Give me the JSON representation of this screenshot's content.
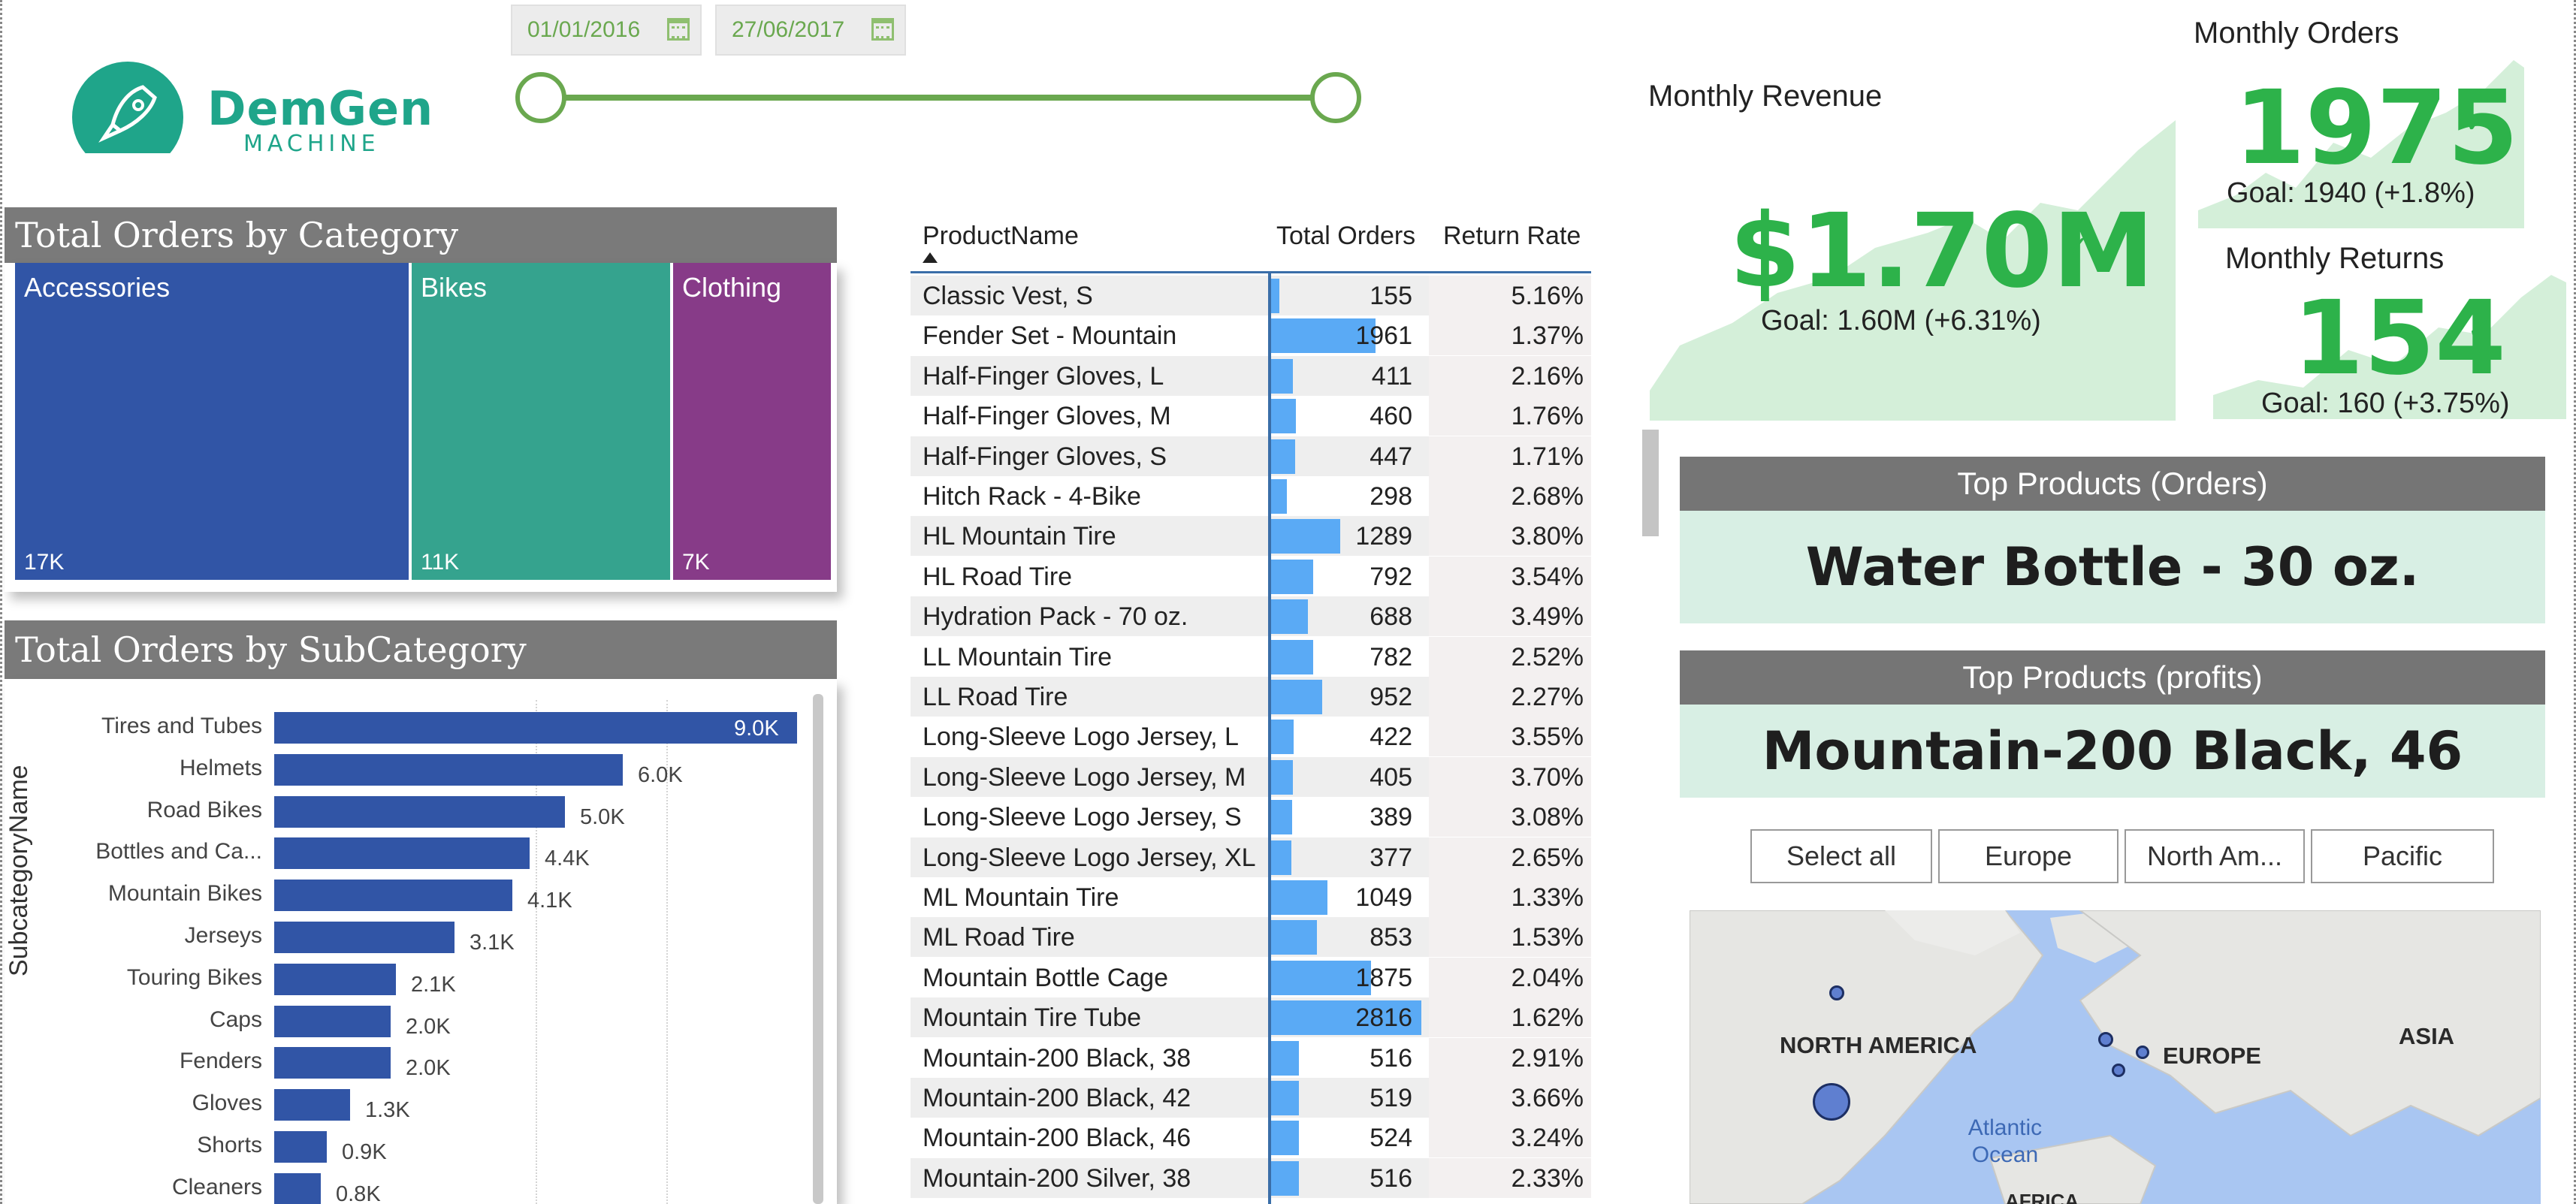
{
  "logo": {
    "name": "DemGen",
    "sub": "MACHINE"
  },
  "date_slicer": {
    "start": "01/01/2016",
    "end": "27/06/2017"
  },
  "treemap": {
    "title": "Total Orders by Category",
    "cells": [
      {
        "name": "Accessories",
        "value": "17K",
        "color": "#3155a6"
      },
      {
        "name": "Bikes",
        "value": "11K",
        "color": "#35a38e"
      },
      {
        "name": "Clothing",
        "value": "7K",
        "color": "#873b88"
      }
    ]
  },
  "subcategory": {
    "title": "Total Orders by SubCategory",
    "axis_title": "SubcategoryName"
  },
  "chart_data": {
    "type": "bar",
    "orientation": "horizontal",
    "title": "Total Orders by SubCategory",
    "xlabel": "",
    "ylabel": "SubcategoryName",
    "categories": [
      "Tires and Tubes",
      "Helmets",
      "Road Bikes",
      "Bottles and Ca...",
      "Mountain Bikes",
      "Jerseys",
      "Touring Bikes",
      "Caps",
      "Fenders",
      "Gloves",
      "Shorts",
      "Cleaners"
    ],
    "values": [
      9000,
      6000,
      5000,
      4400,
      4100,
      3100,
      2100,
      2000,
      2000,
      1300,
      900,
      800
    ],
    "labels": [
      "9.0K",
      "6.0K",
      "5.0K",
      "4.4K",
      "4.1K",
      "3.1K",
      "2.1K",
      "2.0K",
      "2.0K",
      "1.3K",
      "0.9K",
      "0.8K"
    ],
    "xlim": [
      0,
      9000
    ],
    "grid": true,
    "color": "#3155a6"
  },
  "table": {
    "headers": {
      "product": "ProductName",
      "orders": "Total Orders",
      "rate": "Return Rate"
    },
    "rows": [
      {
        "product": "Classic Vest, S",
        "orders": 155,
        "rate": "5.16%"
      },
      {
        "product": "Fender Set - Mountain",
        "orders": 1961,
        "rate": "1.37%"
      },
      {
        "product": "Half-Finger Gloves, L",
        "orders": 411,
        "rate": "2.16%"
      },
      {
        "product": "Half-Finger Gloves, M",
        "orders": 460,
        "rate": "1.76%"
      },
      {
        "product": "Half-Finger Gloves, S",
        "orders": 447,
        "rate": "1.71%"
      },
      {
        "product": "Hitch Rack - 4-Bike",
        "orders": 298,
        "rate": "2.68%"
      },
      {
        "product": "HL Mountain Tire",
        "orders": 1289,
        "rate": "3.80%"
      },
      {
        "product": "HL Road Tire",
        "orders": 792,
        "rate": "3.54%"
      },
      {
        "product": "Hydration Pack - 70 oz.",
        "orders": 688,
        "rate": "3.49%"
      },
      {
        "product": "LL Mountain Tire",
        "orders": 782,
        "rate": "2.52%"
      },
      {
        "product": "LL Road Tire",
        "orders": 952,
        "rate": "2.27%"
      },
      {
        "product": "Long-Sleeve Logo Jersey, L",
        "orders": 422,
        "rate": "3.55%"
      },
      {
        "product": "Long-Sleeve Logo Jersey, M",
        "orders": 405,
        "rate": "3.70%"
      },
      {
        "product": "Long-Sleeve Logo Jersey, S",
        "orders": 389,
        "rate": "3.08%"
      },
      {
        "product": "Long-Sleeve Logo Jersey, XL",
        "orders": 377,
        "rate": "2.65%"
      },
      {
        "product": "ML Mountain Tire",
        "orders": 1049,
        "rate": "1.33%"
      },
      {
        "product": "ML Road Tire",
        "orders": 853,
        "rate": "1.53%"
      },
      {
        "product": "Mountain Bottle Cage",
        "orders": 1875,
        "rate": "2.04%"
      },
      {
        "product": "Mountain Tire Tube",
        "orders": 2816,
        "rate": "1.62%"
      },
      {
        "product": "Mountain-200 Black, 38",
        "orders": 516,
        "rate": "2.91%"
      },
      {
        "product": "Mountain-200 Black, 42",
        "orders": 519,
        "rate": "3.66%"
      },
      {
        "product": "Mountain-200 Black, 46",
        "orders": 524,
        "rate": "3.24%"
      },
      {
        "product": "Mountain-200 Silver, 38",
        "orders": 516,
        "rate": "2.33%"
      }
    ],
    "bar_max": 2816,
    "bar_color": "#5aaaf5"
  },
  "kpi": {
    "revenue": {
      "title": "Monthly Revenue",
      "value": "$1.70M",
      "goal": "Goal: 1.60M (+6.31%)"
    },
    "orders": {
      "title": "Monthly Orders",
      "value": "1975",
      "goal": "Goal: 1940 (+1.8%)"
    },
    "returns": {
      "title": "Monthly Returns",
      "value": "154",
      "goal": "Goal: 160 (+3.75%)"
    },
    "accent": "#2db24a"
  },
  "top_orders": {
    "title": "Top Products (Orders)",
    "value": "Water Bottle - 30 oz."
  },
  "top_profits": {
    "title": "Top Products (profits)",
    "value": "Mountain-200 Black, 46"
  },
  "region_slicer": {
    "options": [
      "Select all",
      "Europe",
      "North Am...",
      "Pacific"
    ]
  },
  "map": {
    "labels": {
      "north_america": "NORTH AMERICA",
      "europe": "EUROPE",
      "asia": "ASIA",
      "africa": "AFRICA",
      "ocean": "Atlantic Ocean"
    }
  }
}
